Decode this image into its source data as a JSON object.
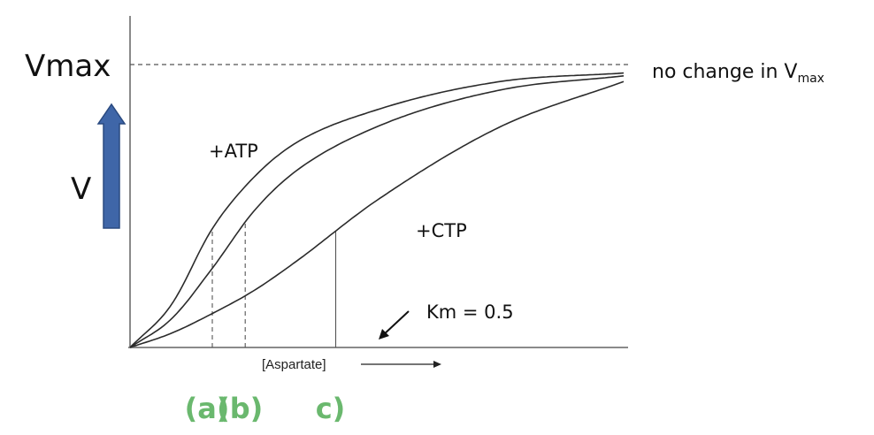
{
  "chart_data": {
    "type": "line",
    "title": "",
    "xlabel": "[Aspartate]",
    "ylabel": "V",
    "vmax_label": "Vmax",
    "note": {
      "text": "no change in V",
      "subscript": "max"
    },
    "km_label": "Km = 0.5",
    "series": [
      {
        "name": "+ATP",
        "points": [
          [
            0,
            0
          ],
          [
            0.5,
            0.15
          ],
          [
            1.0,
            0.42
          ],
          [
            1.5,
            0.6
          ],
          [
            2.0,
            0.72
          ],
          [
            3.0,
            0.84
          ],
          [
            4.5,
            0.94
          ],
          [
            6.0,
            0.97
          ]
        ]
      },
      {
        "name": "",
        "points": [
          [
            0,
            0
          ],
          [
            0.5,
            0.1
          ],
          [
            1.0,
            0.28
          ],
          [
            1.5,
            0.48
          ],
          [
            2.0,
            0.62
          ],
          [
            3.0,
            0.78
          ],
          [
            4.5,
            0.91
          ],
          [
            6.0,
            0.96
          ]
        ]
      },
      {
        "name": "+CTP",
        "points": [
          [
            0,
            0
          ],
          [
            0.5,
            0.05
          ],
          [
            1.0,
            0.12
          ],
          [
            1.5,
            0.2
          ],
          [
            2.0,
            0.3
          ],
          [
            3.0,
            0.52
          ],
          [
            4.5,
            0.78
          ],
          [
            6.0,
            0.94
          ]
        ]
      }
    ],
    "vlines": [
      {
        "x": 1.0,
        "label": "(a)",
        "style": "dashed"
      },
      {
        "x": 1.4,
        "label": "(b)",
        "style": "dashed"
      },
      {
        "x": 2.5,
        "label": "c)",
        "style": "solid"
      }
    ],
    "xlim": [
      0,
      6.0
    ],
    "ylim": [
      0,
      1.0
    ],
    "grid": false,
    "colors": {
      "arrow": "#3f66a8",
      "arrow_edge": "#2a4a80",
      "label_green": "#6ab86e",
      "curve": "#2b2b2b"
    }
  }
}
